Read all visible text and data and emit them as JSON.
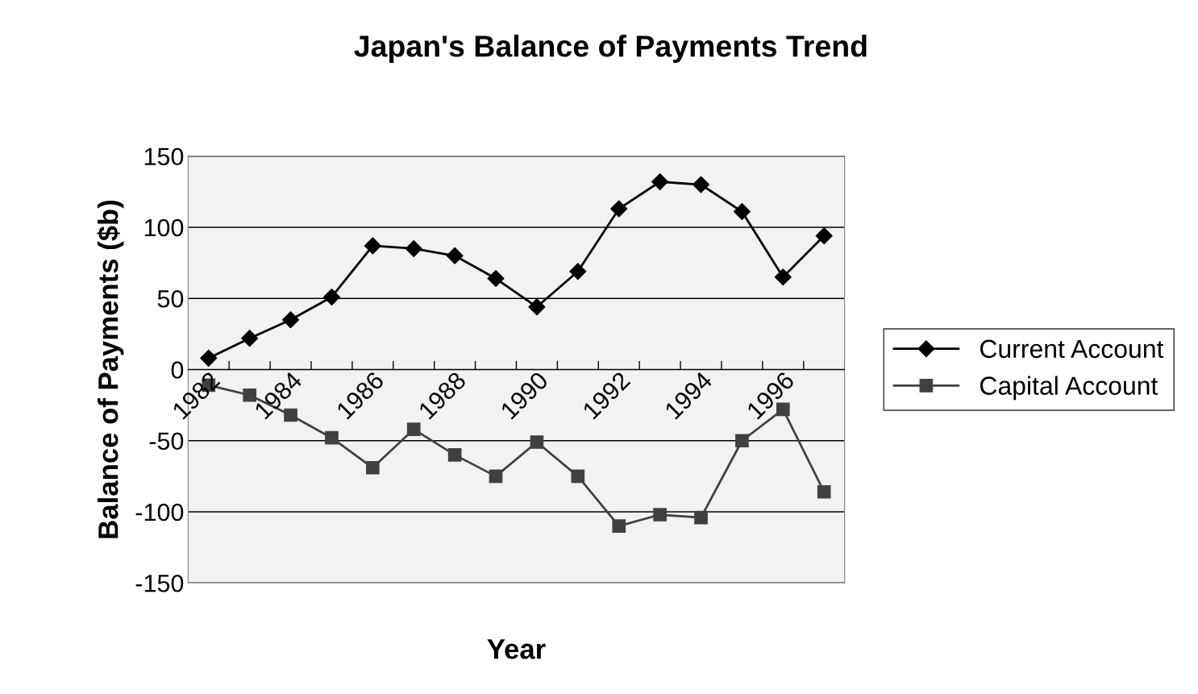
{
  "chart_data": {
    "type": "line",
    "title": "Japan's Balance of Payments Trend",
    "xlabel": "Year",
    "ylabel": "Balance of Payments ($b)",
    "categories": [
      "1982",
      null,
      "1984",
      null,
      "1986",
      null,
      "1988",
      null,
      "1990",
      null,
      "1992",
      null,
      "1994",
      null,
      "1996",
      null
    ],
    "series": [
      {
        "name": "Current Account",
        "color": "#000000",
        "marker": "diamond",
        "values": [
          8,
          22,
          35,
          51,
          87,
          85,
          80,
          64,
          44,
          69,
          113,
          132,
          130,
          111,
          65,
          94
        ]
      },
      {
        "name": "Capital Account",
        "color": "#404040",
        "marker": "square",
        "values": [
          -11,
          -18,
          -32,
          -48,
          -69,
          -42,
          -60,
          -75,
          -51,
          -75,
          -110,
          -102,
          -104,
          -50,
          -28,
          -86
        ]
      }
    ],
    "ylim": [
      -150,
      150
    ],
    "yticks": [
      -150,
      -100,
      -50,
      0,
      50,
      100,
      150
    ],
    "grid": "y",
    "legend": "right"
  }
}
